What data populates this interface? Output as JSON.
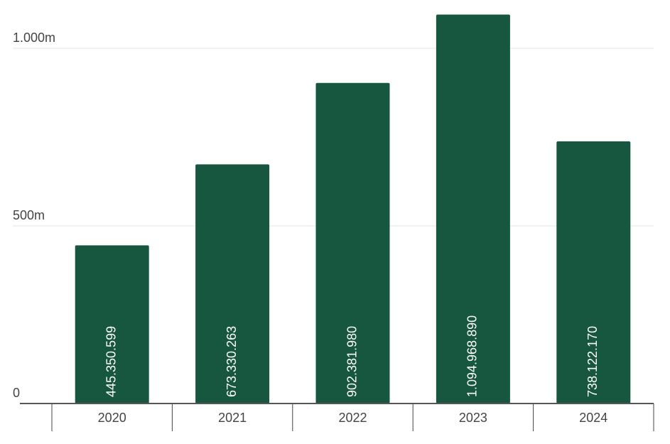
{
  "chart_data": {
    "type": "bar",
    "categories": [
      "2020",
      "2021",
      "2022",
      "2023",
      "2024"
    ],
    "values": [
      445350599,
      673330263,
      902381980,
      1094968890,
      738122170
    ],
    "value_labels": [
      "445.350.599",
      "673.330.263",
      "902.381.980",
      "1.094.968.890",
      "738.122.170"
    ],
    "color": "#17573f",
    "ylim": [
      0,
      1100000000
    ],
    "yticks": [
      0,
      {
        "value": 500000000,
        "label": "500m"
      },
      {
        "value": 1000000000,
        "label": "1.000m"
      }
    ],
    "grid": true
  }
}
